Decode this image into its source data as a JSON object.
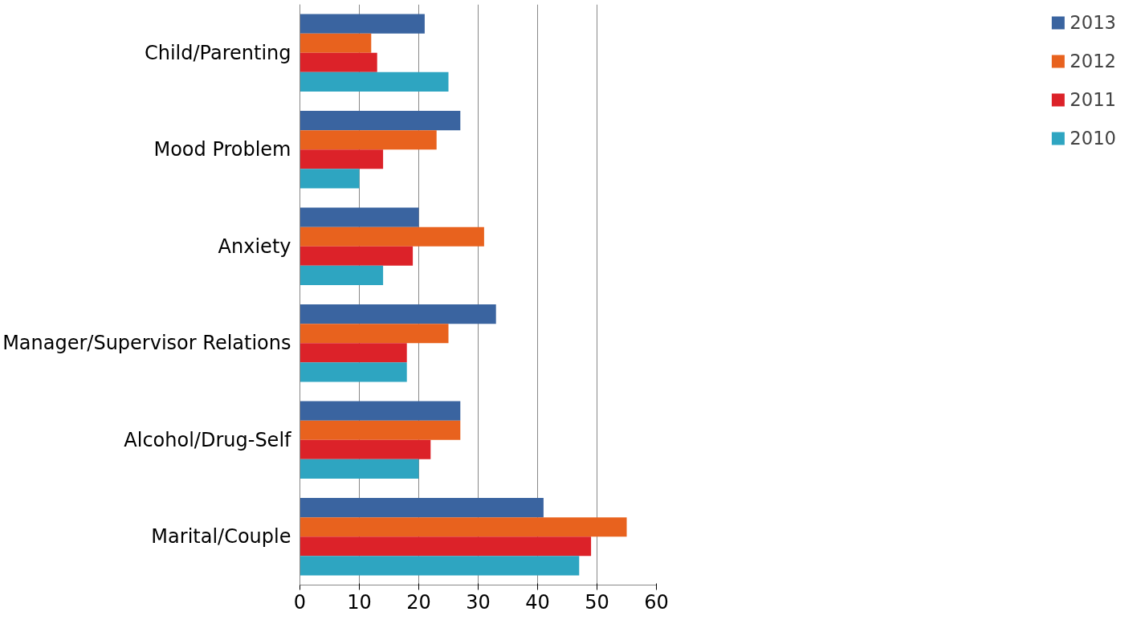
{
  "chart_data": {
    "type": "bar",
    "orientation": "horizontal",
    "categories": [
      "Child/Parenting",
      "Mood Problem",
      "Anxiety",
      "Manager/Supervisor Relations",
      "Alcohol/Drug-Self",
      "Marital/Couple"
    ],
    "series": [
      {
        "name": "2013",
        "color": "#3a64a0",
        "values": [
          21,
          27,
          20,
          33,
          27,
          41
        ]
      },
      {
        "name": "2012",
        "color": "#e8621e",
        "values": [
          12,
          23,
          31,
          25,
          27,
          55
        ]
      },
      {
        "name": "2011",
        "color": "#dc2229",
        "values": [
          13,
          14,
          19,
          18,
          22,
          49
        ]
      },
      {
        "name": "2010",
        "color": "#2ea5c1",
        "values": [
          25,
          10,
          14,
          18,
          20,
          47
        ]
      }
    ],
    "xlim": [
      0,
      60
    ],
    "xticks": [
      0,
      10,
      20,
      30,
      40,
      50,
      60
    ],
    "grid": "x",
    "legend": "right"
  }
}
